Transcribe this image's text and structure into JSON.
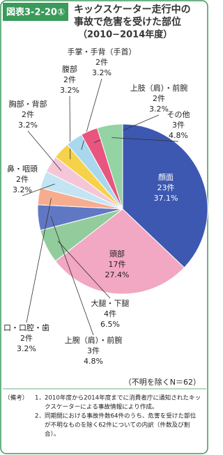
{
  "chart_data": {
    "type": "pie",
    "label": "図表3-2-20①",
    "title": [
      "キックスケーター走行中の",
      "事故で危害を受けた部位",
      "（2010−2014年度）"
    ],
    "categories": [
      "顔面",
      "頭部",
      "大腿・下腿",
      "上腕（肩）・前腕",
      "口・口腔・歯",
      "鼻・咽頭",
      "胸部・背部",
      "腹部",
      "手掌・手背（手首）",
      "上肢（肩）・前腕",
      "その他"
    ],
    "values": [
      23,
      17,
      4,
      3,
      2,
      2,
      2,
      2,
      2,
      2,
      3
    ],
    "value_labels": [
      "23件",
      "17件",
      "4件",
      "3件",
      "2件",
      "2件",
      "2件",
      "2件",
      "2件",
      "2件",
      "3件"
    ],
    "percent_labels": [
      "37.1%",
      "27.4%",
      "6.5%",
      "4.8%",
      "3.2%",
      "3.2%",
      "3.2%",
      "3.2%",
      "3.2%",
      "3.2%",
      "4.8%"
    ],
    "colors": [
      "#3d58b0",
      "#f2a7c3",
      "#93cc9c",
      "#6078c4",
      "#f6ad8f",
      "#c3e5f3",
      "#f5c6d7",
      "#f6d24a",
      "#a9d8ee",
      "#e8557e",
      "#93d3a4"
    ],
    "note_n": "（不明を除くN＝62）",
    "notes_heading": "（備考）",
    "notes": [
      {
        "number": "1．",
        "lines": [
          "2010年度から2014年度までに消費者庁に通知されたキッ",
          "クスケーターによる事故情報により作成。"
        ]
      },
      {
        "number": "2．",
        "lines": [
          "同期間における事故件数64件のうち、危害を受けた部位",
          "が不明なものを除く62件についての内訳（件数及び割",
          "合）。"
        ]
      }
    ]
  }
}
